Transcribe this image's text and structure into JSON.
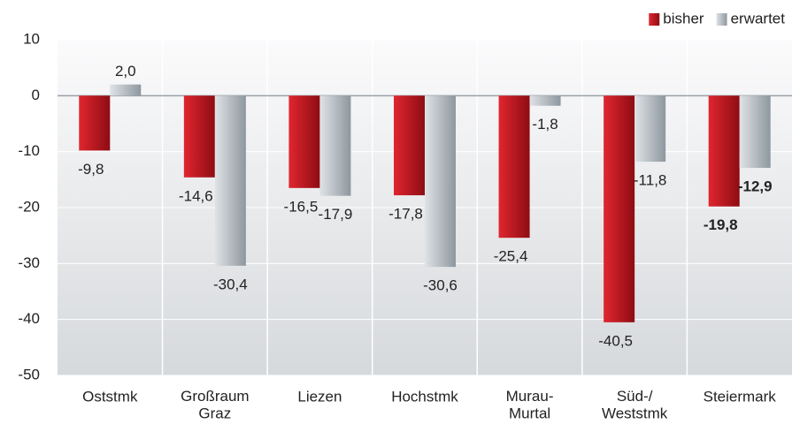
{
  "chart_data": {
    "type": "bar",
    "categories": [
      "Oststmk",
      "Großraum\nGraz",
      "Liezen",
      "Hochstmk",
      "Murau-\nMurtal",
      "Süd-/\nWeststmk",
      "Steiermark"
    ],
    "series": [
      {
        "name": "bisher",
        "color": "#b5121b",
        "values": [
          -9.8,
          -14.6,
          -16.5,
          -17.8,
          -25.4,
          -40.5,
          -19.8
        ],
        "value_labels": [
          "-9,8",
          "-14,6",
          "-16,5",
          "-17,8",
          "-25,4",
          "-40,5",
          "-19,8"
        ]
      },
      {
        "name": "erwartet",
        "color": "#a3acb4",
        "values": [
          2.0,
          -30.4,
          -17.9,
          -30.6,
          -1.8,
          -11.8,
          -12.9
        ],
        "value_labels": [
          "2,0",
          "-30,4",
          "-17,9",
          "-30,6",
          "-1,8",
          "-11,8",
          "-12,9"
        ]
      }
    ],
    "ylim": [
      -50,
      10
    ],
    "yticks": [
      -50,
      -40,
      -30,
      -20,
      -10,
      0,
      10
    ],
    "legend": "top-right",
    "highlight_category": 6
  }
}
